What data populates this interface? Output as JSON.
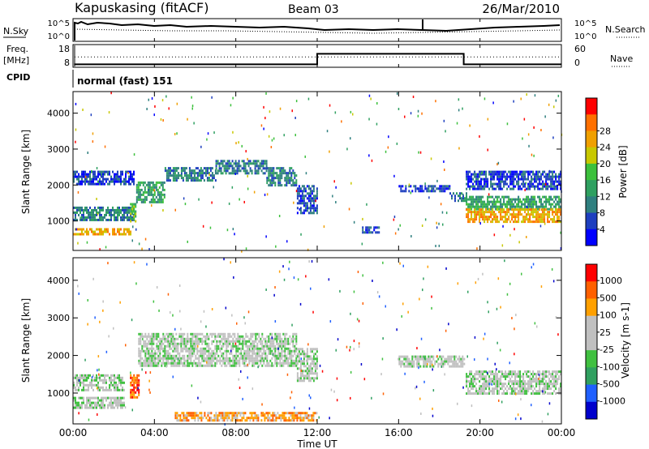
{
  "header": {
    "station": "Kapuskasing (fitACF)",
    "beam": "Beam 03",
    "date": "26/Mar/2010"
  },
  "status_panel": {
    "nsky_label": "N.Sky",
    "nsky_ticks": [
      "10^5",
      "10^0"
    ],
    "nsearch_label": "N.Search",
    "nsearch_ticks": [
      "10^5",
      "10^0"
    ],
    "freq_label_1": "Freq.",
    "freq_label_2": "[MHz]",
    "freq_ticks": [
      "18",
      "8"
    ],
    "nave_label": "Nave",
    "nave_ticks": [
      "60",
      "0"
    ],
    "cpid_label": "CPID",
    "cpid_value": "normal (fast) 151"
  },
  "colors": {
    "power_scale": [
      "#0000ff",
      "#1e3fbf",
      "#2f7f7f",
      "#2fa060",
      "#3cc03c",
      "#c8c800",
      "#f0a000",
      "#ff7000",
      "#ff0000"
    ],
    "velocity_scale": [
      "#0000cc",
      "#2060ff",
      "#30a060",
      "#40c040",
      "#c0c0c0",
      "#c0c0c0",
      "#ffa000",
      "#ff6000",
      "#ff0000"
    ]
  },
  "chart_data": [
    {
      "type": "line",
      "name": "status",
      "x_unit": "hours UT",
      "freq_mhz_segments": [
        [
          0.05,
          9.0
        ],
        [
          12.0,
          9.0
        ],
        [
          12.0,
          14.0
        ],
        [
          19.2,
          14.0
        ],
        [
          19.2,
          9.0
        ],
        [
          24.0,
          9.0
        ]
      ],
      "nave_dotted_mhz_level": 12.5,
      "xlim": [
        0,
        24
      ]
    },
    {
      "type": "heatmap",
      "title": "",
      "ylabel": "Slant Range [km]",
      "yticks": [
        "1000",
        "2000",
        "3000",
        "4000"
      ],
      "ylim": [
        180,
        4600
      ],
      "xlim": [
        0,
        24
      ],
      "colorbar": {
        "label": "Power [dB]",
        "ticks": [
          "4",
          "8",
          "12",
          "16",
          "20",
          "24",
          "28"
        ]
      },
      "regions": [
        {
          "x0": 0.0,
          "x1": 3.0,
          "y0": 2000,
          "y1": 2400,
          "level": 1
        },
        {
          "x0": 0.0,
          "x1": 3.0,
          "y0": 1000,
          "y1": 1400,
          "level": 2
        },
        {
          "x0": 0.0,
          "x1": 2.8,
          "y0": 600,
          "y1": 800,
          "level": 6
        },
        {
          "x0": 2.8,
          "x1": 3.1,
          "y0": 1000,
          "y1": 1500,
          "level": 4
        },
        {
          "x0": 3.1,
          "x1": 4.5,
          "y0": 1500,
          "y1": 2100,
          "level": 3
        },
        {
          "x0": 4.5,
          "x1": 7.0,
          "y0": 2100,
          "y1": 2500,
          "level": 2
        },
        {
          "x0": 7.0,
          "x1": 9.5,
          "y0": 2300,
          "y1": 2700,
          "level": 2
        },
        {
          "x0": 9.5,
          "x1": 11.0,
          "y0": 2000,
          "y1": 2500,
          "level": 2
        },
        {
          "x0": 11.0,
          "x1": 12.0,
          "y0": 1200,
          "y1": 2000,
          "level": 1
        },
        {
          "x0": 14.2,
          "x1": 15.0,
          "y0": 700,
          "y1": 850,
          "level": 1
        },
        {
          "x0": 16.0,
          "x1": 18.5,
          "y0": 1800,
          "y1": 2000,
          "level": 1
        },
        {
          "x0": 18.5,
          "x1": 19.3,
          "y0": 1550,
          "y1": 1800,
          "level": 2
        },
        {
          "x0": 19.3,
          "x1": 24.0,
          "y0": 1350,
          "y1": 1700,
          "level": 3
        },
        {
          "x0": 19.3,
          "x1": 24.0,
          "y0": 1000,
          "y1": 1350,
          "level": 6
        },
        {
          "x0": 19.3,
          "x1": 24.0,
          "y0": 1900,
          "y1": 2400,
          "level": 1
        }
      ]
    },
    {
      "type": "heatmap",
      "title": "",
      "ylabel": "Slant Range [km]",
      "yticks": [
        "1000",
        "2000",
        "3000",
        "4000"
      ],
      "ylim": [
        180,
        4600
      ],
      "xlim": [
        0,
        24
      ],
      "xlabel": "Time UT",
      "xticks": [
        "00:00",
        "04:00",
        "08:00",
        "12:00",
        "16:00",
        "20:00",
        "00:00"
      ],
      "colorbar": {
        "label": "Velocity [m s-1]",
        "ticks": [
          "1000",
          "500",
          "100",
          "25",
          "-25",
          "-100",
          "-500",
          "-1000"
        ]
      },
      "regions": [
        {
          "x0": 0.0,
          "x1": 2.5,
          "y0": 1100,
          "y1": 1500,
          "level": 4
        },
        {
          "x0": 0.0,
          "x1": 2.5,
          "y0": 600,
          "y1": 900,
          "level": 4
        },
        {
          "x0": 2.8,
          "x1": 3.2,
          "y0": 900,
          "y1": 1500,
          "level": 7
        },
        {
          "x0": 3.2,
          "x1": 11.0,
          "y0": 1700,
          "y1": 2600,
          "level": 4
        },
        {
          "x0": 11.0,
          "x1": 12.0,
          "y0": 1300,
          "y1": 2200,
          "level": 4
        },
        {
          "x0": 16.0,
          "x1": 19.2,
          "y0": 1700,
          "y1": 2000,
          "level": 4
        },
        {
          "x0": 19.3,
          "x1": 24.0,
          "y0": 1000,
          "y1": 1600,
          "level": 4
        },
        {
          "x0": 5.0,
          "x1": 12.0,
          "y0": 300,
          "y1": 500,
          "level": 6
        }
      ]
    }
  ]
}
